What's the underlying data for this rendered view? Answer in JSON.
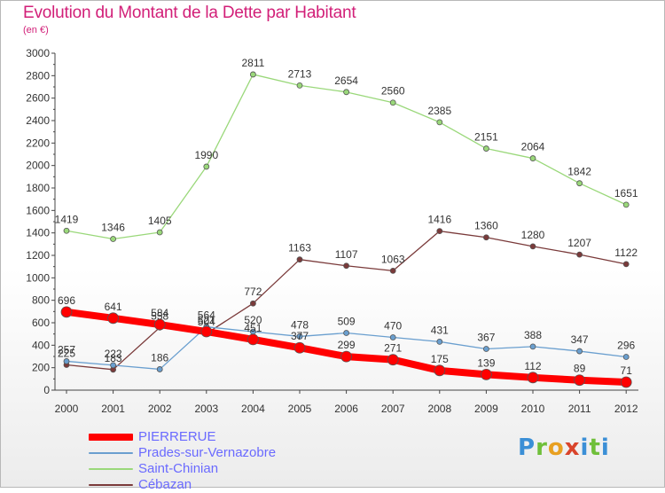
{
  "header": {
    "title": "Evolution du Montant de la Dette par Habitant",
    "subtitle": "(en €)"
  },
  "logo": {
    "text": "Proxiti"
  },
  "chart_data": {
    "type": "line",
    "title": "Evolution du Montant de la Dette par Habitant",
    "subtitle": "(en €)",
    "x": [
      "2000",
      "2001",
      "2002",
      "2003",
      "2004",
      "2005",
      "2006",
      "2007",
      "2008",
      "2009",
      "2010",
      "2011",
      "2012"
    ],
    "ylim": [
      0,
      3000
    ],
    "yticks": [
      0,
      200,
      400,
      600,
      800,
      1000,
      1200,
      1400,
      1600,
      1800,
      2000,
      2200,
      2400,
      2600,
      2800,
      3000
    ],
    "grid": false,
    "legend_position": "bottom-left",
    "series": [
      {
        "name": "PIERRERUE",
        "color": "#ff0000",
        "values": [
          696,
          641,
          584,
          521,
          451,
          377,
          299,
          271,
          175,
          139,
          112,
          89,
          71
        ]
      },
      {
        "name": "Prades-sur-Vernazobre",
        "color": "#6a9fcf",
        "values": [
          257,
          222,
          186,
          564,
          520,
          478,
          509,
          470,
          431,
          367,
          388,
          347,
          296
        ]
      },
      {
        "name": "Saint-Chinian",
        "color": "#9ad87a",
        "values": [
          1419,
          1346,
          1405,
          1990,
          2811,
          2713,
          2654,
          2560,
          2385,
          2151,
          2064,
          1842,
          1651
        ]
      },
      {
        "name": "Cébazan",
        "color": "#7a3a3a",
        "values": [
          225,
          183,
          558,
          504,
          772,
          1163,
          1107,
          1063,
          1416,
          1360,
          1280,
          1207,
          1122
        ]
      }
    ]
  }
}
